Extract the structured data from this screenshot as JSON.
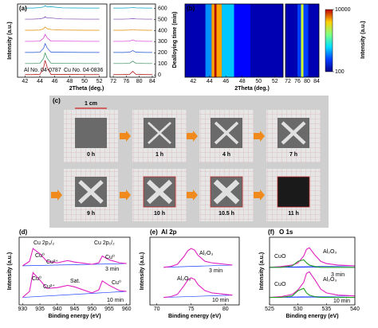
{
  "chart_data": [
    {
      "type": "stack",
      "label": "(a)",
      "xlabel": "2Theta (deg.)",
      "ylabel": "Intensity (a.u.)",
      "y2label": "Dealloying time (min)",
      "annotations": [
        "Al No. 04-0787",
        "Cu No. 04-0836"
      ],
      "segments": [
        {
          "xlim": [
            41,
            53
          ],
          "xticks": [
            42,
            44,
            46,
            48,
            50,
            52
          ]
        },
        {
          "xlim": [
            71,
            85
          ],
          "xticks": [
            72,
            76,
            80,
            84
          ]
        }
      ],
      "ylim": [
        0,
        40
      ],
      "y2lim": [
        -20,
        640
      ],
      "y2ticks": [
        0,
        100,
        200,
        300,
        400,
        500,
        600
      ],
      "x": [
        42,
        43,
        44,
        44.5,
        44.7,
        45,
        45.5,
        47,
        50,
        52,
        72,
        75,
        77,
        78,
        79,
        82,
        84
      ],
      "series": [
        {
          "time": 0,
          "color": "#b00000",
          "values": [
            0.2,
            0.2,
            0.3,
            4,
            8,
            4,
            0.3,
            0.3,
            0.2,
            0.2,
            0.2,
            0.2,
            0.3,
            2,
            0.3,
            0.2,
            0.2
          ]
        },
        {
          "time": 100,
          "color": "#2e8b57",
          "values": [
            0.2,
            0.2,
            0.3,
            3,
            6,
            3,
            0.3,
            0.3,
            0.2,
            0.2,
            0.2,
            0.2,
            0.3,
            1.5,
            0.3,
            0.2,
            0.2
          ]
        },
        {
          "time": 200,
          "color": "#1f4fd6",
          "values": [
            0.2,
            0.2,
            0.3,
            2.5,
            5,
            2.5,
            0.3,
            0.3,
            0.2,
            0.2,
            0.2,
            0.2,
            0.3,
            1.2,
            0.3,
            0.2,
            0.2
          ]
        },
        {
          "time": 300,
          "color": "#d62fd6",
          "values": [
            0.2,
            0.2,
            0.3,
            2,
            4,
            2,
            0.3,
            0.3,
            0.2,
            0.2,
            0.2,
            0.2,
            0.3,
            1,
            0.3,
            0.2,
            0.2
          ]
        },
        {
          "time": 400,
          "color": "#e08a00",
          "values": [
            0.2,
            0.2,
            0.3,
            1,
            2,
            1,
            0.6,
            0.3,
            0.2,
            0.2,
            0.2,
            0.2,
            0.3,
            0.6,
            0.3,
            0.2,
            0.2
          ]
        },
        {
          "time": 500,
          "color": "#7a3fb0",
          "values": [
            0.2,
            0.2,
            0.4,
            0.8,
            1.5,
            0.8,
            0.8,
            0.3,
            0.2,
            0.2,
            0.2,
            0.2,
            0.3,
            0.5,
            0.3,
            0.2,
            0.2
          ]
        },
        {
          "time": 600,
          "color": "#00a0c0",
          "values": [
            0.2,
            0.2,
            0.4,
            0.8,
            1.5,
            0.8,
            0.9,
            0.3,
            0.2,
            0.2,
            0.2,
            0.2,
            0.3,
            0.5,
            0.3,
            0.2,
            0.2
          ]
        }
      ]
    },
    {
      "type": "heatmap",
      "label": "(b)",
      "xlabel": "2Theta (deg.)",
      "zlabel": "Intensity (a.u.)",
      "segments": [
        {
          "xlim": [
            41,
            53
          ],
          "xticks": [
            42,
            44,
            46,
            48,
            50,
            52
          ]
        },
        {
          "xlim": [
            71,
            85
          ],
          "xticks": [
            72,
            76,
            80,
            84
          ]
        }
      ],
      "x": [
        42,
        43,
        44,
        44.5,
        44.7,
        45,
        46,
        48,
        50,
        52,
        72,
        75,
        77,
        78,
        79,
        82,
        84
      ],
      "values": [
        100,
        100,
        300,
        3000,
        10000,
        3000,
        400,
        150,
        100,
        100,
        100,
        100,
        200,
        1500,
        200,
        100,
        100
      ],
      "zlim": [
        100,
        10000
      ],
      "zticks": [
        100,
        10000
      ],
      "zlog": true
    },
    {
      "type": "line",
      "label": "(d)",
      "xlabel": "Binding energy (eV)",
      "ylabel": "Intensity (a.u.)",
      "annotations": [
        "Cu 2p₃/₂",
        "Cu 2p₁/₂",
        "Cu⁰",
        "Cu²⁺",
        "Cu⁰",
        "3 min",
        "Cu⁰",
        "Cu²⁺",
        "Sat.",
        "Cu⁰",
        "10 min"
      ],
      "segments": [
        {
          "xlim": [
            929,
            961
          ],
          "xticks": [
            930,
            935,
            940,
            945,
            950,
            955,
            960
          ]
        }
      ],
      "ylim": [
        0,
        9
      ],
      "x": [
        930,
        932,
        933,
        935,
        937,
        940,
        943,
        945,
        950,
        952,
        953,
        955,
        958,
        960
      ],
      "series": [
        {
          "color": "#e020c0",
          "values": [
            5.2,
            5.8,
            7.5,
            6.8,
            5.8,
            5.6,
            5.9,
            5.7,
            5.4,
            5.6,
            6.5,
            6.0,
            5.6,
            5.5
          ]
        },
        {
          "color": "#e020c0",
          "values": [
            1.0,
            1.8,
            4.3,
            3.3,
            2.2,
            2.3,
            2.6,
            2.4,
            1.6,
            2.0,
            3.2,
            2.6,
            1.9,
            1.8
          ]
        }
      ]
    },
    {
      "type": "line",
      "label": "(e)",
      "title": "Al 2p",
      "xlabel": "Binding energy (eV)",
      "ylabel": "Intensity (a.u.)",
      "annotations": [
        "Al₂O₃",
        "3 min",
        "Al₂O₃",
        "10 min"
      ],
      "segments": [
        {
          "xlim": [
            69,
            82
          ],
          "xticks": [
            70,
            75,
            80
          ]
        }
      ],
      "ylim": [
        0,
        9
      ],
      "x": [
        71,
        72,
        73,
        74,
        74.5,
        75,
        75.5,
        76,
        77,
        78,
        79,
        80,
        81
      ],
      "series": [
        {
          "color": "#e020c0",
          "values": [
            5.0,
            5.1,
            5.4,
            6.5,
            7.2,
            7.5,
            7.3,
            6.6,
            5.8,
            5.6,
            5.5,
            5.4,
            5.3
          ]
        },
        {
          "color": "#e020c0",
          "values": [
            1.0,
            1.1,
            1.4,
            2.6,
            3.3,
            3.6,
            3.4,
            2.7,
            1.9,
            1.6,
            1.5,
            1.4,
            1.3
          ]
        }
      ]
    },
    {
      "type": "line",
      "label": "(f)",
      "title": "O 1s",
      "xlabel": "Binding energy (eV)",
      "ylabel": "Intensity (a.u.)",
      "annotations": [
        "CuO",
        "Al₂O₃",
        "3 min",
        "CuO",
        "Al₂O₃",
        "10 min"
      ],
      "segments": [
        {
          "xlim": [
            525,
            540
          ],
          "xticks": [
            525,
            530,
            535,
            540
          ]
        }
      ],
      "ylim": [
        0,
        9
      ],
      "x": [
        525,
        527,
        529,
        530,
        531,
        531.5,
        532,
        533,
        534,
        535,
        537,
        540
      ],
      "series": [
        {
          "color": "#e020c0",
          "values": [
            5.0,
            5.1,
            5.3,
            5.6,
            6.5,
            7.4,
            7.6,
            6.6,
            5.8,
            5.5,
            5.3,
            5.2
          ]
        },
        {
          "color": "#20a020",
          "values": [
            5.0,
            5.0,
            5.2,
            5.8,
            6.0,
            5.6,
            5.3,
            5.1,
            5.0,
            5.0,
            5.0,
            5.0
          ]
        },
        {
          "color": "#e020c0",
          "values": [
            1.0,
            1.1,
            1.4,
            2.0,
            3.0,
            4.2,
            4.4,
            3.3,
            2.1,
            1.6,
            1.3,
            1.2
          ]
        },
        {
          "color": "#20a020",
          "values": [
            1.0,
            1.0,
            1.2,
            1.9,
            2.2,
            1.6,
            1.3,
            1.1,
            1.0,
            1.0,
            1.0,
            1.0
          ]
        }
      ]
    }
  ],
  "photos": {
    "label": "(c)",
    "scale": "1 cm",
    "times": [
      "0 h",
      "1 h",
      "4 h",
      "7 h",
      "9 h",
      "10 h",
      "10.5 h",
      "11 h"
    ]
  }
}
